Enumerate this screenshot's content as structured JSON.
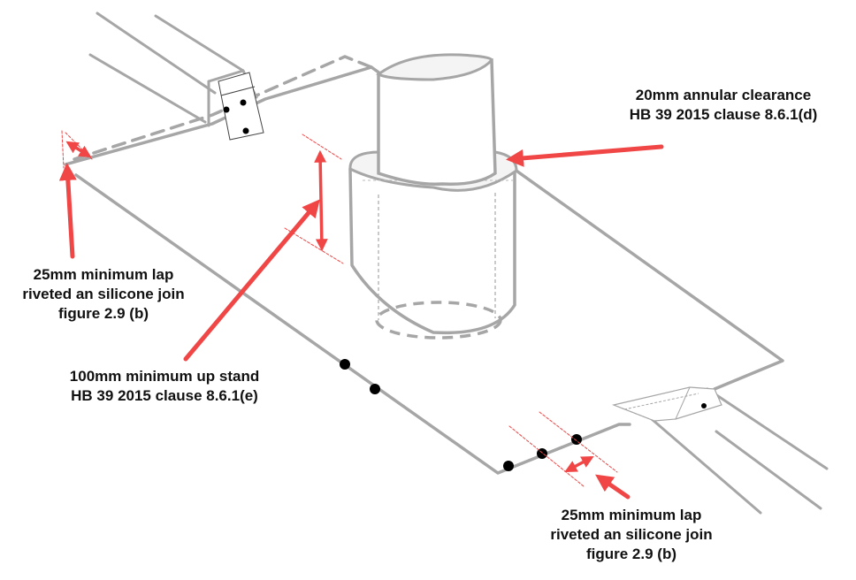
{
  "labels": {
    "clearance": {
      "line1": "20mm annular clearance",
      "line2": "HB 39 2015 clause 8.6.1(d)"
    },
    "lap_top": {
      "line1": "25mm minimum lap",
      "line2": "riveted an silicone join",
      "line3": "figure 2.9 (b)"
    },
    "upstand": {
      "line1": "100mm minimum up stand",
      "line2": "HB 39 2015 clause 8.6.1(e)"
    },
    "lap_bottom": {
      "line1": "25mm minimum lap",
      "line2": "riveted an silicone join",
      "line3": "figure 2.9 (b)"
    }
  },
  "colors": {
    "outline": "#a6a6a6",
    "annotation": "#f04646",
    "text": "#111111",
    "rivet": "#000000"
  }
}
